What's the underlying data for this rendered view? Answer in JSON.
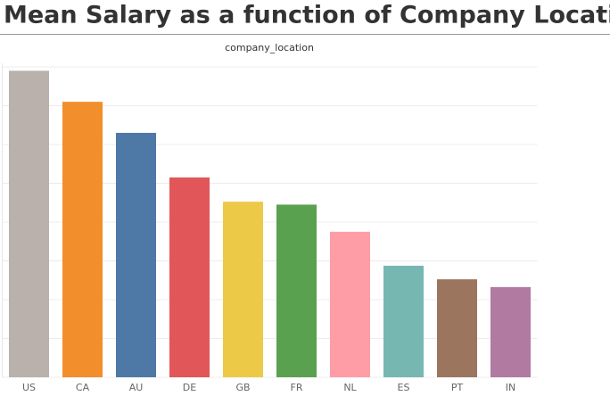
{
  "chart_data": {
    "type": "bar",
    "title": "Mean Salary as a function of Company Location",
    "subtitle": "company_location",
    "categories": [
      "US",
      "CA",
      "AU",
      "DE",
      "GB",
      "FR",
      "NL",
      "ES",
      "PT",
      "IN"
    ],
    "values": [
      158000,
      142000,
      126000,
      103000,
      90500,
      89000,
      75000,
      57500,
      50500,
      46500
    ],
    "colors": [
      "#bab0ac",
      "#f28e2b",
      "#4e79a7",
      "#e15759",
      "#edc948",
      "#59a14f",
      "#ff9da7",
      "#76b7b2",
      "#9c755f",
      "#b07aa1"
    ],
    "ylim": [
      0,
      160000
    ],
    "yticks": [
      0,
      20000,
      40000,
      60000,
      80000,
      100000,
      120000,
      140000,
      160000
    ],
    "grid": true
  }
}
